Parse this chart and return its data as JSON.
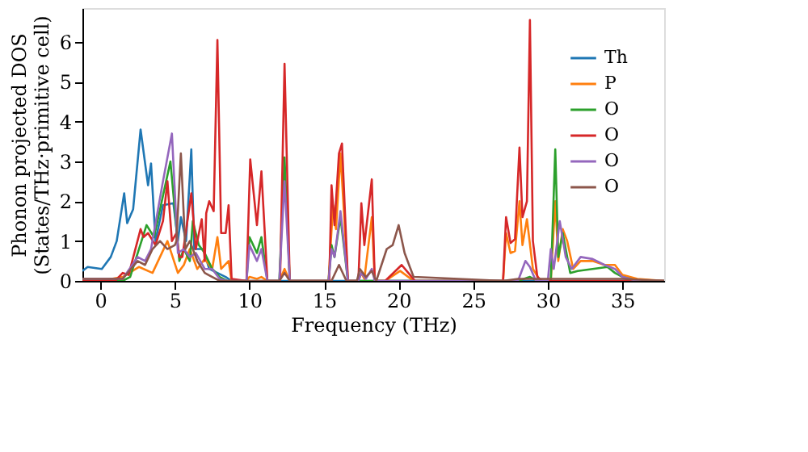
{
  "chart_data": {
    "type": "line",
    "xlabel": "Frequency (THz)",
    "ylabel": "Phonon projected DOS\n(States/THz·primitive cell)",
    "xlim": [
      -1.2,
      37.8
    ],
    "ylim": [
      0,
      6.85
    ],
    "xticks": [
      0,
      5,
      10,
      15,
      20,
      25,
      30,
      35
    ],
    "yticks": [
      0,
      1,
      2,
      3,
      4,
      5,
      6
    ],
    "grid": false,
    "legend": "top right",
    "marker": "none",
    "line_style": "solid",
    "series": [
      {
        "name": "Th",
        "color": "#1f77b4",
        "x": [
          -1.2,
          -0.85,
          0.1,
          0.7,
          1.1,
          1.6,
          1.8,
          2.2,
          2.7,
          3.2,
          3.4,
          3.7,
          4.2,
          4.9,
          5.2,
          5.4,
          5.75,
          6.1,
          6.3,
          6.9,
          7.3,
          8.4,
          8.8,
          12,
          20,
          30,
          37.8
        ],
        "values": [
          0.25,
          0.35,
          0.3,
          0.6,
          1.0,
          2.2,
          1.45,
          1.8,
          3.8,
          2.4,
          2.95,
          1.0,
          1.9,
          1.95,
          1.0,
          1.6,
          1.0,
          3.3,
          0.8,
          0.8,
          0.3,
          0.1,
          0,
          0,
          0,
          0,
          0
        ]
      },
      {
        "name": "P",
        "color": "#ff7f0e",
        "x": [
          -1.2,
          0,
          1.5,
          2.6,
          3.5,
          4.0,
          4.5,
          5.2,
          5.6,
          6.0,
          6.5,
          7.0,
          7.5,
          7.85,
          8.1,
          8.6,
          8.8,
          9.8,
          10.0,
          10.5,
          10.8,
          11.2,
          12.0,
          12.35,
          12.7,
          15.3,
          15.6,
          15.8,
          16.1,
          16.6,
          17.3,
          17.5,
          17.7,
          18.2,
          18.4,
          19.1,
          20.1,
          21.0,
          27.0,
          27.2,
          27.5,
          27.8,
          28.1,
          28.3,
          28.6,
          29.0,
          29.5,
          30.2,
          30.5,
          30.7,
          31.0,
          31.3,
          31.7,
          32.2,
          33.0,
          33.8,
          34.5,
          35.0,
          36.0,
          37.8
        ],
        "values": [
          0,
          0,
          0.1,
          0.35,
          0.2,
          0.6,
          1.0,
          0.2,
          0.4,
          0.8,
          0.3,
          0.55,
          0.3,
          1.1,
          0.3,
          0.5,
          0,
          0,
          0.1,
          0.05,
          0.1,
          0,
          0,
          0.3,
          0,
          0,
          1.9,
          1.3,
          3.2,
          0,
          0,
          0.2,
          0.05,
          1.6,
          0,
          0,
          0.25,
          0,
          0,
          1.2,
          0.7,
          0.75,
          2.0,
          0.9,
          1.55,
          0.3,
          0,
          0,
          2.0,
          0.5,
          1.3,
          1.0,
          0.3,
          0.5,
          0.5,
          0.4,
          0.4,
          0.15,
          0.05,
          0
        ]
      },
      {
        "name": "O",
        "color": "#2ca02c",
        "x": [
          -1.2,
          1.5,
          2.0,
          3.1,
          3.6,
          4.7,
          5.3,
          5.6,
          6.0,
          6.2,
          6.6,
          7.0,
          7.5,
          8.0,
          8.5,
          9.8,
          10.0,
          10.5,
          10.8,
          11.2,
          12.0,
          12.35,
          12.7,
          15.3,
          15.5,
          15.7,
          16.1,
          16.6,
          28.0,
          28.8,
          29.3,
          30.2,
          30.5,
          30.7,
          31.0,
          31.5,
          32.0,
          33.0,
          34.0,
          34.5,
          35.0,
          36.0,
          37.8
        ],
        "values": [
          0,
          0,
          0.1,
          1.4,
          1.1,
          3.0,
          0.5,
          0.8,
          0.5,
          1.5,
          0.9,
          0.7,
          0.3,
          0.1,
          0,
          0,
          1.1,
          0.7,
          1.1,
          0,
          0,
          3.1,
          0,
          0,
          0.9,
          0.6,
          1.6,
          0,
          0,
          0.1,
          0,
          0,
          3.3,
          0.6,
          1.2,
          0.2,
          0.25,
          0.3,
          0.35,
          0.2,
          0.1,
          0,
          0
        ]
      },
      {
        "name": "O",
        "color": "#d62728",
        "x": [
          -1.2,
          1.0,
          1.5,
          1.9,
          2.7,
          2.9,
          3.2,
          3.7,
          4.2,
          4.5,
          4.8,
          5.1,
          5.3,
          5.5,
          6.1,
          6.4,
          6.8,
          7.0,
          7.1,
          7.3,
          7.6,
          7.85,
          8.1,
          8.4,
          8.6,
          8.8,
          9.8,
          10.05,
          10.5,
          10.8,
          11.2,
          12.05,
          12.35,
          12.7,
          15.35,
          15.5,
          15.7,
          16.0,
          16.2,
          16.6,
          17.3,
          17.5,
          17.7,
          18.2,
          18.4,
          19.1,
          20.2,
          21.1,
          27.0,
          27.2,
          27.5,
          27.8,
          28.1,
          28.3,
          28.6,
          28.8,
          29.0,
          29.3,
          29.6,
          35.0,
          37.8
        ],
        "values": [
          0,
          0,
          0.2,
          0.15,
          1.3,
          1.1,
          1.2,
          0.9,
          1.5,
          2.5,
          1.0,
          1.2,
          0.6,
          0.6,
          2.2,
          0.8,
          1.55,
          0.5,
          1.7,
          2.0,
          1.75,
          6.05,
          1.2,
          1.2,
          1.9,
          0.05,
          0,
          3.05,
          1.4,
          2.75,
          0,
          0,
          5.45,
          0,
          0,
          2.4,
          1.4,
          3.2,
          3.45,
          0,
          0,
          1.95,
          0.9,
          2.55,
          0,
          0,
          0.4,
          0,
          0,
          1.6,
          0.95,
          1.05,
          3.35,
          1.6,
          2.0,
          6.55,
          1.0,
          0.1,
          0,
          0,
          0
        ]
      },
      {
        "name": "O",
        "color": "#9467bd",
        "x": [
          -1.2,
          1.5,
          2.5,
          3.0,
          3.4,
          4.2,
          4.8,
          5.2,
          5.6,
          6.0,
          6.4,
          7.0,
          7.5,
          8.0,
          8.5,
          9.8,
          10.0,
          10.5,
          10.8,
          11.2,
          12.0,
          12.35,
          12.7,
          15.3,
          15.5,
          15.7,
          16.1,
          16.6,
          17.3,
          17.5,
          17.8,
          18.2,
          18.4,
          28.0,
          28.5,
          28.8,
          29.2,
          30.0,
          30.2,
          30.4,
          30.8,
          31.2,
          31.6,
          32.2,
          33.0,
          33.8,
          34.5,
          35.0,
          36.0,
          37.8
        ],
        "values": [
          0.05,
          0.05,
          0.6,
          0.5,
          0.8,
          2.5,
          3.7,
          0.7,
          0.8,
          0.6,
          0.7,
          0.3,
          0.3,
          0.05,
          0,
          0,
          0.9,
          0.5,
          0.8,
          0,
          0,
          2.5,
          0,
          0,
          0.8,
          0.6,
          1.75,
          0,
          0,
          0.2,
          0.05,
          0.3,
          0,
          0,
          0.5,
          0.35,
          0,
          0,
          0.8,
          0.3,
          1.5,
          0.6,
          0.3,
          0.6,
          0.55,
          0.4,
          0.3,
          0.1,
          0,
          0
        ]
      },
      {
        "name": "O",
        "color": "#8c564b",
        "x": [
          -1.2,
          1.5,
          2.5,
          3.0,
          3.5,
          4.0,
          4.5,
          5.0,
          5.1,
          5.4,
          5.7,
          6.0,
          6.5,
          7.0,
          7.5,
          8.0,
          12.0,
          12.35,
          12.7,
          15.5,
          16.0,
          16.5,
          17.2,
          17.4,
          17.8,
          18.2,
          18.5,
          19.2,
          19.6,
          20.0,
          20.4,
          21.0,
          27.0,
          28.0,
          35.0,
          37.8
        ],
        "values": [
          0.05,
          0.05,
          0.5,
          0.4,
          0.8,
          1.0,
          0.8,
          0.9,
          1.0,
          3.2,
          0.8,
          1.0,
          0.5,
          0.2,
          0.1,
          0,
          0,
          0.2,
          0,
          0,
          0.4,
          0,
          0,
          0.3,
          0.1,
          0.25,
          0,
          0.8,
          0.9,
          1.4,
          0.7,
          0.1,
          0,
          0.05,
          0.05,
          0
        ]
      }
    ]
  }
}
